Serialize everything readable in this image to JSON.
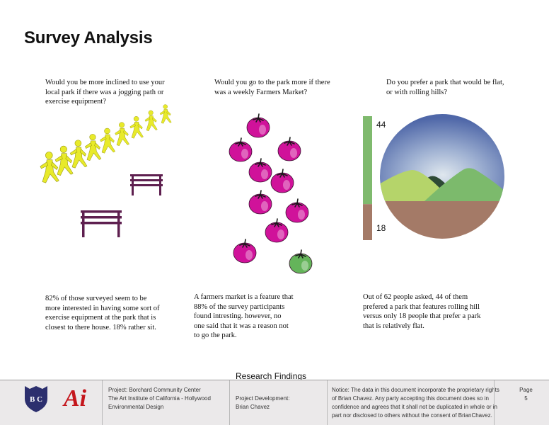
{
  "title": "Survey Analysis",
  "questions": [
    {
      "lines": [
        "Would you be more inclined to use your",
        "local park if there was a jogging path or",
        "exercise equipment?"
      ]
    },
    {
      "lines": [
        "Would you go to the park more if there",
        "was a weekly Farmers Market?"
      ]
    },
    {
      "lines": [
        "Do you prefer a park that would be flat,",
        "or with rolling hills?"
      ]
    }
  ],
  "answers": [
    {
      "lines": [
        "82% of those surveyed seem to be",
        "more interested in having some sort of",
        "exercise equipment at the park that is",
        "closest to there house. 18% rather sit."
      ]
    },
    {
      "lines": [
        "A farmers market is a feature that",
        "88% of the survey participants",
        "found intresting. however, no",
        "one said that it was a reason not",
        "to go the park."
      ]
    },
    {
      "lines": [
        "Out of 62 people asked, 44 of them",
        "prefered a park that features rolling hill",
        "versus only 18 people that prefer a park",
        "that is relatively flat."
      ]
    }
  ],
  "chart_data": {
    "type": "bar",
    "orientation": "stacked-vertical",
    "categories": [
      "rolling hills",
      "flat"
    ],
    "values": [
      44,
      18
    ],
    "labels": [
      "44",
      "18"
    ],
    "colors": [
      "#7fba6e",
      "#a47a67"
    ]
  },
  "figure_counts": {
    "runners": 9,
    "benches": 2,
    "tomatoes_pink": 10,
    "tomatoes_green": 1
  },
  "colors": {
    "runner": "#e8ea2a",
    "bench": "#5e1f4f",
    "tomato_pink": "#d0129a",
    "tomato_green": "#64b45a",
    "sky": "#5f7ab3",
    "ground": "#a47a67",
    "hill_light": "#b5d46a",
    "hill_green": "#7cba6c",
    "footer_bg": "#ebe9ea",
    "logo_bc": "#2c2f6e",
    "logo_ai": "#c4161c"
  },
  "section_label": "Research Findings",
  "footer": {
    "logo_bc_text": "B C",
    "logo_ai_text": "Ai",
    "project_lines": [
      "Project: Borchard Community Center",
      "The Art Institute of California - Hollywood",
      "Environmental Design"
    ],
    "dev_lines": [
      "Project Development:",
      "Brian Chavez"
    ],
    "notice_lines": [
      "Notice: The data in this document incorporate the proprietary rights",
      "of Brian Chavez. Any party accepting this document does so in",
      "confidence and agrees that it shall not be duplicated in whole or in",
      "part nor disclosed to others without the consent of BrianChavez."
    ],
    "page_label": "Page",
    "page_number": "5"
  }
}
